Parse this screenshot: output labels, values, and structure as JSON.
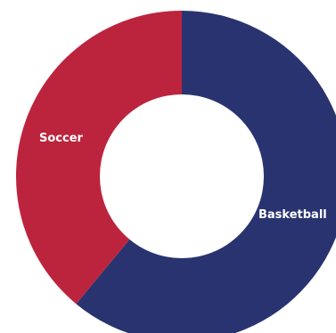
{
  "chart_data": {
    "type": "pie",
    "donut": true,
    "slices": [
      {
        "label": "Basketball",
        "value": 61,
        "color": "#29336f"
      },
      {
        "label": "Soccer",
        "value": 39,
        "color": "#bc243e"
      }
    ],
    "title": "",
    "legend": "none"
  }
}
